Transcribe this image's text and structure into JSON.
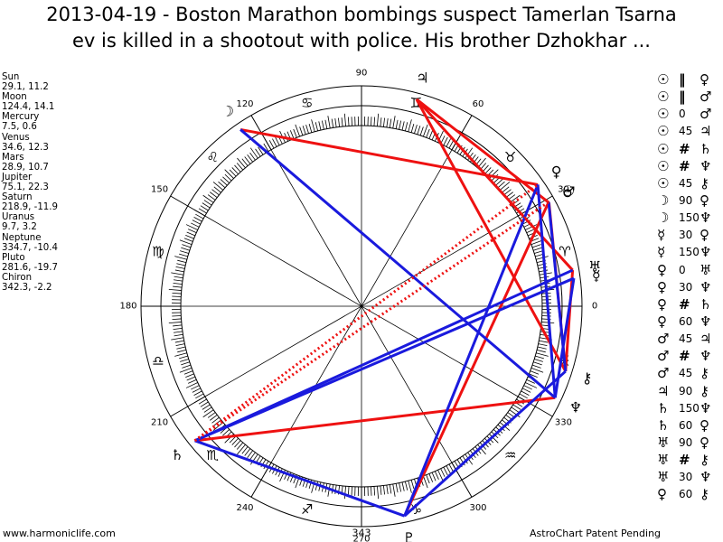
{
  "title": {
    "line1": "2013-04-19 - Boston Marathon bombings suspect Tamerlan Tsarna",
    "line2": "ev is killed in a shootout with police. His brother Dzhokhar ..."
  },
  "positions": [
    {
      "name": "Sun",
      "value": "29.1, 11.2"
    },
    {
      "name": "Moon",
      "value": "124.4, 14.1"
    },
    {
      "name": "Mercury",
      "value": "7.5, 0.6"
    },
    {
      "name": "Venus",
      "value": "34.6, 12.3"
    },
    {
      "name": "Mars",
      "value": "28.9, 10.7"
    },
    {
      "name": "Jupiter",
      "value": "75.1, 22.3"
    },
    {
      "name": "Saturn",
      "value": "218.9, -11.9"
    },
    {
      "name": "Uranus",
      "value": "9.7, 3.2"
    },
    {
      "name": "Neptune",
      "value": "334.7, -10.4"
    },
    {
      "name": "Pluto",
      "value": "281.6, -19.7"
    },
    {
      "name": "Chiron",
      "value": "342.3, -2.2"
    }
  ],
  "aspects": [
    {
      "p1": "☉",
      "asp": "‖",
      "p2": "♀"
    },
    {
      "p1": "☉",
      "asp": "‖",
      "p2": "♂"
    },
    {
      "p1": "☉",
      "asp": "0",
      "p2": "♂"
    },
    {
      "p1": "☉",
      "asp": "45",
      "p2": "♃"
    },
    {
      "p1": "☉",
      "asp": "#",
      "p2": "♄"
    },
    {
      "p1": "☉",
      "asp": "#",
      "p2": "♆"
    },
    {
      "p1": "☉",
      "asp": "45",
      "p2": "⚷"
    },
    {
      "p1": "☽",
      "asp": "90",
      "p2": "♀"
    },
    {
      "p1": "☽",
      "asp": "150",
      "p2": "♆"
    },
    {
      "p1": "☿",
      "asp": "30",
      "p2": "♀"
    },
    {
      "p1": "☿",
      "asp": "150",
      "p2": "♆"
    },
    {
      "p1": "♀",
      "asp": "0",
      "p2": "♅"
    },
    {
      "p1": "♀",
      "asp": "30",
      "p2": "♆"
    },
    {
      "p1": "♀",
      "asp": "#",
      "p2": "♄"
    },
    {
      "p1": "♀",
      "asp": "60",
      "p2": "♆"
    },
    {
      "p1": "♂",
      "asp": "45",
      "p2": "♃"
    },
    {
      "p1": "♂",
      "asp": "#",
      "p2": "♆"
    },
    {
      "p1": "♂",
      "asp": "45",
      "p2": "⚷"
    },
    {
      "p1": "♃",
      "asp": "90",
      "p2": "⚷"
    },
    {
      "p1": "♄",
      "asp": "150",
      "p2": "♆"
    },
    {
      "p1": "♄",
      "asp": "60",
      "p2": "♀"
    },
    {
      "p1": "♅",
      "asp": "90",
      "p2": "♀"
    },
    {
      "p1": "♅",
      "asp": "#",
      "p2": "⚷"
    },
    {
      "p1": "♅",
      "asp": "30",
      "p2": "♆"
    },
    {
      "p1": "♀",
      "asp": "60",
      "p2": "⚷"
    }
  ],
  "wheel": {
    "degree_labels": [
      "0",
      "30",
      "60",
      "90",
      "120",
      "150",
      "180",
      "210",
      "240",
      "270",
      "300",
      "330"
    ],
    "bottom_label": "343",
    "signs": [
      "♈",
      "♉",
      "♊",
      "♋",
      "♌",
      "♍",
      "♎",
      "♏",
      "♐",
      "♑",
      "♒",
      "♓"
    ],
    "planets": [
      {
        "name": "sun",
        "glyph": "☉",
        "lon": 29.1
      },
      {
        "name": "moon",
        "glyph": "☽",
        "lon": 124.4
      },
      {
        "name": "mercury",
        "glyph": "☿",
        "lon": 7.5
      },
      {
        "name": "venus",
        "glyph": "♀",
        "lon": 34.6
      },
      {
        "name": "mars",
        "glyph": "♂",
        "lon": 28.9
      },
      {
        "name": "jupiter",
        "glyph": "♃",
        "lon": 75.1
      },
      {
        "name": "saturn",
        "glyph": "♄",
        "lon": 218.9
      },
      {
        "name": "uranus",
        "glyph": "♅",
        "lon": 9.7
      },
      {
        "name": "neptune",
        "glyph": "♆",
        "lon": 334.7
      },
      {
        "name": "pluto",
        "glyph": "♇",
        "lon": 281.6
      },
      {
        "name": "chiron",
        "glyph": "⚷",
        "lon": 342.3
      }
    ],
    "red_lines": [
      [
        124.4,
        34.6
      ],
      [
        75.1,
        28.9
      ],
      [
        75.1,
        9.7
      ],
      [
        75.1,
        342.3
      ],
      [
        218.9,
        334.7
      ],
      [
        281.6,
        29.1
      ],
      [
        28.9,
        342.3
      ],
      [
        9.7,
        342.3
      ]
    ],
    "blue_lines": [
      [
        124.4,
        334.7
      ],
      [
        218.9,
        9.7
      ],
      [
        218.9,
        7.5
      ],
      [
        218.9,
        281.6
      ],
      [
        281.6,
        34.6
      ],
      [
        34.6,
        334.7
      ],
      [
        29.1,
        342.3
      ],
      [
        7.5,
        334.7
      ],
      [
        281.6,
        342.3
      ]
    ],
    "dotted_lines": [
      [
        218.9,
        29.1
      ],
      [
        218.9,
        34.6
      ]
    ],
    "colors": {
      "red": "#ee1111",
      "blue": "#1a1add",
      "line": "#000000"
    }
  },
  "footer": {
    "left": "www.harmoniclife.com",
    "right": "AstroChart Patent Pending"
  }
}
